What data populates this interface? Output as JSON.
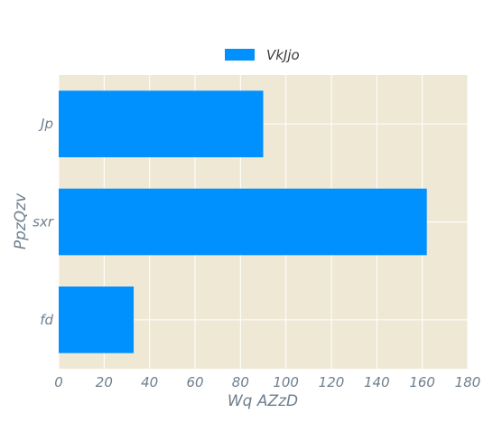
{
  "chart_data": {
    "type": "bar",
    "orientation": "horizontal",
    "categories": [
      "Jp",
      "sxr",
      "fd"
    ],
    "series": [
      {
        "name": "VkJjo",
        "values": [
          90,
          162,
          33
        ]
      }
    ],
    "xlabel": "Wq AZzD",
    "ylabel": "PpzQzv",
    "xlim": [
      0,
      180
    ],
    "xticks": [
      0,
      20,
      40,
      60,
      80,
      100,
      120,
      140,
      160,
      180
    ],
    "grid": true,
    "legend_position": "top-center"
  },
  "colors": {
    "plot_background": "#efe8d5",
    "bar": "#0091ff",
    "grid": "#ffffff",
    "tick_text": "#6e7f8e",
    "legend_text": "#3a3a3a"
  }
}
